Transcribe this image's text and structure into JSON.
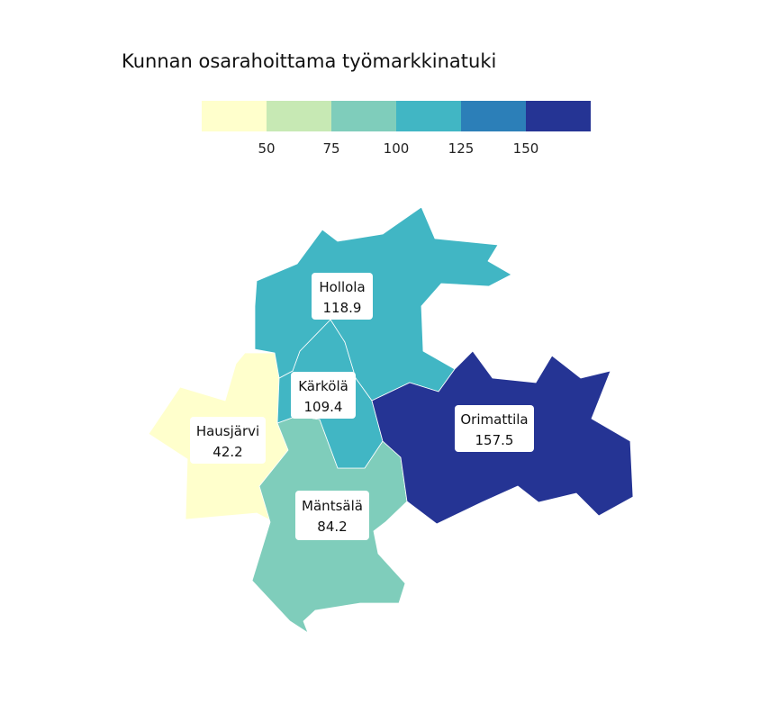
{
  "title": "Kunnan osarahoittama työmarkkinatuki",
  "legend": {
    "ticks": [
      "50",
      "75",
      "100",
      "125",
      "150"
    ],
    "colors": [
      "#ffffcc",
      "#c7e9b4",
      "#7fcdbb",
      "#41b6c4",
      "#2c7fb8",
      "#253494"
    ]
  },
  "chart_data": {
    "type": "choropleth",
    "title": "Kunnan osarahoittama työmarkkinatuki",
    "legend_placement": "top",
    "bins": [
      50,
      75,
      100,
      125,
      150
    ],
    "regions": [
      {
        "name": "Hollola",
        "value": 118.9,
        "value_label": "118.9"
      },
      {
        "name": "Kärkölä",
        "value": 109.4,
        "value_label": "109.4"
      },
      {
        "name": "Hausjärvi",
        "value": 42.2,
        "value_label": "42.2"
      },
      {
        "name": "Mäntsälä",
        "value": 84.2,
        "value_label": "84.2"
      },
      {
        "name": "Orimattila",
        "value": 157.5,
        "value_label": "157.5"
      }
    ]
  }
}
